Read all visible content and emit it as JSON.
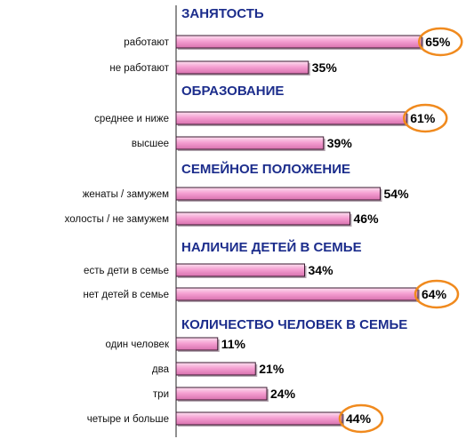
{
  "chart_data": {
    "type": "bar",
    "orientation": "horizontal",
    "unit": "%",
    "xlim": [
      0,
      100
    ],
    "grid": false,
    "legend": "none",
    "colors": {
      "bar_fill": "#f5a0d2",
      "bar_highlight": "#fde0f0",
      "bar_edge": "#3a1a30",
      "section_title": "#1c2d8c",
      "highlight_ellipse": "#f08a1e"
    },
    "sections": [
      {
        "title": "ЗАНЯТОСТЬ",
        "bars": [
          {
            "label": "работают",
            "value": 65,
            "text": "65%",
            "highlighted": true
          },
          {
            "label": "не работают",
            "value": 35,
            "text": "35%",
            "highlighted": false
          }
        ]
      },
      {
        "title": "ОБРАЗОВАНИЕ",
        "bars": [
          {
            "label": "среднее и ниже",
            "value": 61,
            "text": "61%",
            "highlighted": true
          },
          {
            "label": "высшее",
            "value": 39,
            "text": "39%",
            "highlighted": false
          }
        ]
      },
      {
        "title": "СЕМЕЙНОЕ ПОЛОЖЕНИЕ",
        "bars": [
          {
            "label": "женаты / замужем",
            "value": 54,
            "text": "54%",
            "highlighted": false
          },
          {
            "label": "холосты / не замужем",
            "value": 46,
            "text": "46%",
            "highlighted": false
          }
        ]
      },
      {
        "title": "НАЛИЧИЕ ДЕТЕЙ В СЕМЬЕ",
        "bars": [
          {
            "label": "есть дети в семье",
            "value": 34,
            "text": "34%",
            "highlighted": false
          },
          {
            "label": "нет детей в семье",
            "value": 64,
            "text": "64%",
            "highlighted": true
          }
        ]
      },
      {
        "title": "КОЛИЧЕСТВО ЧЕЛОВЕК В СЕМЬЕ",
        "bars": [
          {
            "label": "один человек",
            "value": 11,
            "text": "11%",
            "highlighted": false
          },
          {
            "label": "два",
            "value": 21,
            "text": "21%",
            "highlighted": false
          },
          {
            "label": "три",
            "value": 24,
            "text": "24%",
            "highlighted": false
          },
          {
            "label": "четыре и больше",
            "value": 44,
            "text": "44%",
            "highlighted": true
          }
        ]
      }
    ]
  }
}
